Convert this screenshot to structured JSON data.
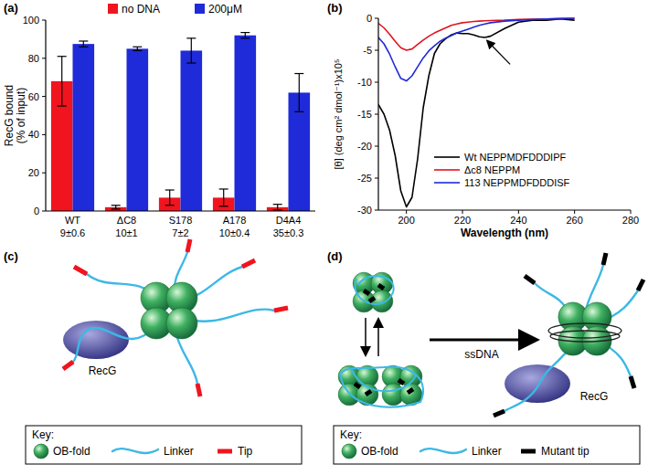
{
  "chart_data": [
    {
      "type": "bar",
      "title": "(a)",
      "y_label": "RecG bound\n(% of input)",
      "categories": [
        "WT",
        "ΔC8",
        "S178",
        "A178",
        "D4A4"
      ],
      "annotations": [
        "9±0.6",
        "10±1",
        "7±2",
        "10±0.4",
        "35±0.3"
      ],
      "series": [
        {
          "name": "no DNA",
          "color": "#f0141e",
          "values": [
            68,
            2,
            7,
            7,
            2
          ],
          "errors": [
            13,
            1,
            4,
            4.5,
            1.5
          ]
        },
        {
          "name": "200μM",
          "color": "#1f2ad8",
          "values": [
            87.5,
            85,
            84,
            92,
            62
          ],
          "errors": [
            1.5,
            1,
            6.5,
            1.5,
            10
          ]
        }
      ],
      "ylim": [
        0,
        100
      ],
      "yticks": [
        0,
        20,
        40,
        60,
        80,
        100
      ],
      "legend": "top"
    },
    {
      "type": "line",
      "title": "(b)",
      "x_label": "Wavelength (nm)",
      "y_label": "[θ] (deg cm² dmol⁻¹)x10⁵",
      "x": [
        190,
        192,
        194,
        196,
        198,
        200,
        202,
        204,
        206,
        208,
        210,
        212,
        214,
        216,
        218,
        220,
        222,
        224,
        226,
        228,
        230,
        235,
        240,
        245,
        250,
        255,
        260
      ],
      "series": [
        {
          "name": "Wt NEPPMDFDDDIPF",
          "color": "#000000",
          "values": [
            -13.5,
            -15,
            -17.5,
            -21.5,
            -27,
            -29.5,
            -28,
            -22,
            -14,
            -9,
            -5.5,
            -4,
            -3.2,
            -2.6,
            -2.3,
            -2.4,
            -2.4,
            -2.6,
            -2.9,
            -3.0,
            -2.8,
            -1.6,
            -0.6,
            -0.3,
            -0.3,
            -0.1,
            -0.3
          ]
        },
        {
          "name": "Δc8 NEPPM",
          "color": "#e0141e",
          "values": [
            -0.8,
            -1.5,
            -2.5,
            -3.6,
            -4.6,
            -5,
            -4.8,
            -4.1,
            -3.4,
            -2.8,
            -2.3,
            -1.9,
            -1.5,
            -1.1,
            -0.9,
            -0.7,
            -0.6,
            -0.5,
            -0.45,
            -0.4,
            -0.35,
            -0.3,
            -0.2,
            -0.15,
            -0.1,
            -0.05,
            0
          ]
        },
        {
          "name": "113 NEPPMDFDDDISF",
          "color": "#1f2ad8",
          "values": [
            -3,
            -4,
            -5.6,
            -7.6,
            -9.4,
            -9.8,
            -9,
            -7.6,
            -6.2,
            -5.1,
            -4.3,
            -3.6,
            -3.1,
            -2.7,
            -2.3,
            -2,
            -1.7,
            -1.4,
            -1.1,
            -0.9,
            -0.7,
            -0.45,
            -0.3,
            -0.2,
            -0.1,
            -0.05,
            0
          ]
        }
      ],
      "xlim": [
        190,
        280
      ],
      "xticks": [
        200,
        220,
        240,
        260,
        280
      ],
      "ylim": [
        -30,
        0
      ],
      "yticks": [
        -30,
        -25,
        -20,
        -15,
        -10,
        -5,
        0
      ],
      "legend": "lower right"
    }
  ],
  "diagrams": [
    {
      "title": "(c)",
      "protein": "RecG",
      "key": {
        "title": "Key:",
        "items": [
          "OB-fold",
          "Linker",
          "Tip"
        ]
      }
    },
    {
      "title": "(d)",
      "arrow_label": "ssDNA",
      "protein": "RecG",
      "key": {
        "title": "Key:",
        "items": [
          "OB-fold",
          "Linker",
          "Mutant tip"
        ]
      }
    }
  ]
}
